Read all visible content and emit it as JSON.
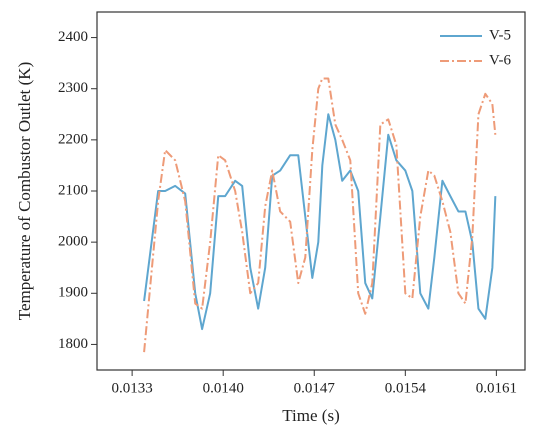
{
  "chart_data": {
    "type": "line",
    "x_label": "Time (s)",
    "y_label": "Temperature of Combustor Outlet (K)",
    "x": [
      0.013392,
      0.0135,
      0.013554,
      0.013631,
      0.013708,
      0.013785,
      0.013838,
      0.0139,
      0.013962,
      0.014015,
      0.014092,
      0.014146,
      0.014208,
      0.014269,
      0.014323,
      0.014377,
      0.014438,
      0.014515,
      0.014577,
      0.014631,
      0.014685,
      0.014731,
      0.014762,
      0.014808,
      0.014862,
      0.014915,
      0.014977,
      0.015038,
      0.015092,
      0.015146,
      0.015208,
      0.015269,
      0.015331,
      0.0154,
      0.015454,
      0.015515,
      0.015577,
      0.015623,
      0.015685,
      0.015746,
      0.015808,
      0.015862,
      0.015915,
      0.015962,
      0.016015,
      0.016069,
      0.016092
    ],
    "series": [
      {
        "name": "V-5",
        "color": "#5ea6cf",
        "dash": "solid",
        "values": [
          1885,
          2100,
          2100,
          2110,
          2095,
          1900,
          1830,
          1900,
          2090,
          2090,
          2120,
          2110,
          1950,
          1870,
          1950,
          2130,
          2140,
          2170,
          2170,
          2050,
          1930,
          2000,
          2150,
          2250,
          2200,
          2120,
          2140,
          2100,
          1920,
          1890,
          2050,
          2210,
          2160,
          2140,
          2100,
          1900,
          1870,
          1970,
          2120,
          2090,
          2060,
          2060,
          2000,
          1870,
          1850,
          1950,
          2090
        ]
      },
      {
        "name": "V-6",
        "color": "#ee9b78",
        "dash": "dashdot",
        "values": [
          1785,
          2080,
          2180,
          2160,
          2080,
          1880,
          1870,
          2000,
          2170,
          2160,
          2100,
          2020,
          1900,
          1920,
          2070,
          2140,
          2060,
          2040,
          1920,
          1970,
          2180,
          2300,
          2320,
          2320,
          2230,
          2200,
          2160,
          1900,
          1860,
          1920,
          2230,
          2240,
          2190,
          1900,
          1890,
          2050,
          2140,
          2130,
          2080,
          2020,
          1900,
          1880,
          2010,
          2250,
          2290,
          2270,
          2210
        ]
      }
    ],
    "xlim": [
      0.01303,
      0.01632
    ],
    "xticks": [
      0.0133,
      {
        "value": 0.014,
        "label": "0.0140"
      },
      0.0147,
      0.0154,
      0.0161
    ],
    "ylim": [
      1750,
      2450
    ],
    "yticks": [
      1800,
      1900,
      2000,
      2100,
      2200,
      2300,
      2400
    ],
    "legend": "upper right"
  }
}
